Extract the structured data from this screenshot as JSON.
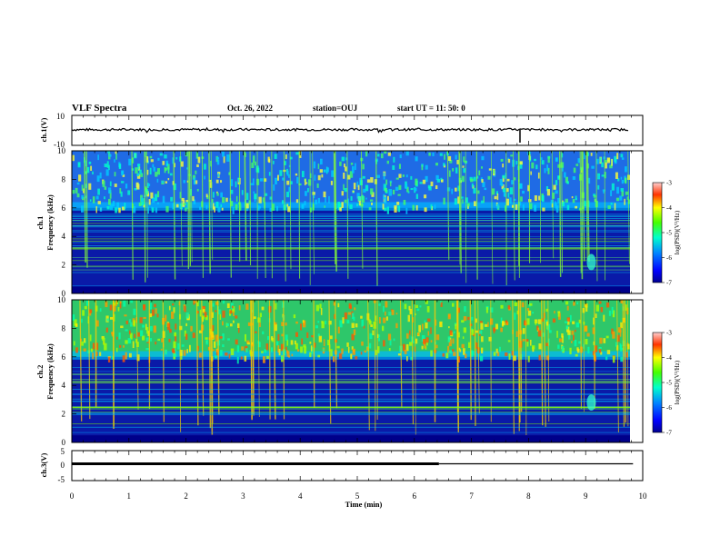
{
  "header": {
    "title": "VLF Spectra",
    "date": "Oct. 26, 2022",
    "station": "station=OUJ",
    "start": "start  UT =   11: 50: 0"
  },
  "chart_data": [
    {
      "type": "line",
      "panel": "ch1-waveform",
      "ylabel": "ch.1(V)",
      "ylim": [
        -10,
        10
      ],
      "yticks": [
        "10",
        "-10"
      ],
      "xlim": [
        0,
        10
      ],
      "mean_value": 0.5,
      "spike_time": 7.85,
      "color": "#000000"
    },
    {
      "type": "heatmap",
      "panel": "ch1-spectrogram",
      "title": "ch.1",
      "ylabel": "Frequency (kHz)",
      "ylim": [
        0,
        10
      ],
      "yticks": [
        "0",
        "2",
        "4",
        "6",
        "8",
        "10"
      ],
      "xlim": [
        0,
        9.83
      ],
      "colorbar": {
        "label": "log(PSD)(V²/Hz)",
        "ticks": [
          "-3",
          "-4",
          "-5",
          "-6",
          "-7"
        ],
        "range": [
          -7,
          -3
        ]
      },
      "features": {
        "quiet_band_khz": [
          0.5,
          5.8
        ],
        "active_band_khz": [
          6,
          10
        ],
        "noise_patch": {
          "time_min": 9.1,
          "freq_khz": 2.2
        }
      }
    },
    {
      "type": "heatmap",
      "panel": "ch2-spectrogram",
      "title": "ch.2",
      "ylabel": "Frequency (kHz)",
      "ylim": [
        0,
        10
      ],
      "yticks": [
        "0",
        "2",
        "4",
        "6",
        "8",
        "10"
      ],
      "xlim": [
        0,
        9.83
      ],
      "colorbar": {
        "label": "log(PSD)(V²/Hz)",
        "ticks": [
          "-3",
          "-4",
          "-5",
          "-6",
          "-7"
        ],
        "range": [
          -7,
          -3
        ]
      },
      "features": {
        "quiet_band_khz": [
          0.5,
          5.8
        ],
        "active_band_khz": [
          6,
          10
        ],
        "noise_patch": {
          "time_min": 9.1,
          "freq_khz": 2.8
        }
      }
    },
    {
      "type": "line",
      "panel": "ch3-waveform",
      "ylabel": "ch.3(V)",
      "ylim": [
        -5,
        5
      ],
      "yticks": [
        "5",
        "0",
        "-5"
      ],
      "xlim": [
        0,
        10
      ],
      "xlabel": "Time (min)",
      "xticks": [
        "0",
        "1",
        "2",
        "3",
        "4",
        "5",
        "6",
        "7",
        "8",
        "9",
        "10"
      ],
      "segments": [
        {
          "x": [
            0,
            6.43
          ],
          "y": 0.6,
          "weight": "thick"
        },
        {
          "x": [
            6.43,
            9.83
          ],
          "y": 0.6,
          "weight": "thin"
        }
      ],
      "color": "#000000"
    }
  ]
}
